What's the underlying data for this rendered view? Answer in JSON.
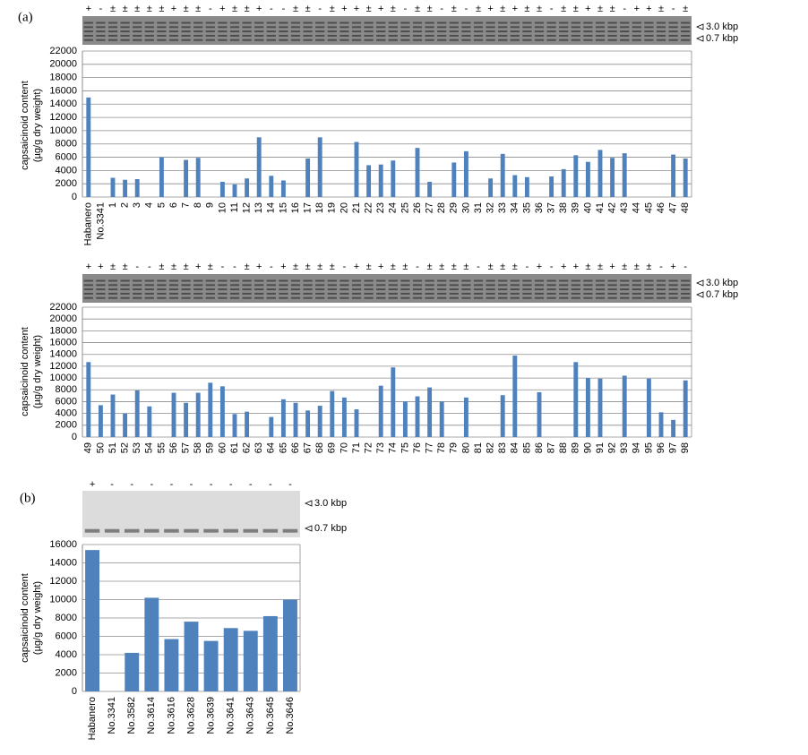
{
  "chart_data": [
    {
      "type": "bar",
      "panel": "(a)",
      "ylabel": [
        "capsaicinoid content",
        "(µg/g dry weight)"
      ],
      "color": "#4f81bd",
      "gel_markers": [
        "3.0 kbp",
        "0.7 kbp"
      ],
      "genotypes": [
        "+",
        "-",
        "±",
        "±",
        "±",
        "±",
        "±",
        "+",
        "±",
        "±",
        "-",
        "+",
        "±",
        "±",
        "+",
        "-",
        "-",
        "±",
        "±",
        "-",
        "±",
        "+",
        "+",
        "±",
        "+",
        "±",
        "-",
        "±",
        "±",
        "-",
        "±",
        "-",
        "±",
        "+",
        "±",
        "+",
        "±",
        "±",
        "-",
        "±",
        "±",
        "+",
        "±",
        "±",
        "-",
        "+",
        "+",
        "±",
        "-",
        "±"
      ],
      "categories": [
        "Habanero",
        "No.3341",
        "1",
        "2",
        "3",
        "4",
        "5",
        "6",
        "7",
        "8",
        "9",
        "10",
        "11",
        "12",
        "13",
        "14",
        "15",
        "16",
        "17",
        "18",
        "19",
        "20",
        "21",
        "22",
        "23",
        "24",
        "25",
        "26",
        "27",
        "28",
        "29",
        "30",
        "31",
        "32",
        "33",
        "34",
        "35",
        "36",
        "37",
        "38",
        "39",
        "40",
        "41",
        "42",
        "43",
        "44",
        "45",
        "46",
        "47",
        "48"
      ],
      "values": [
        15000,
        0,
        2900,
        2600,
        2700,
        0,
        6000,
        0,
        5600,
        5900,
        0,
        2300,
        1900,
        2800,
        9000,
        3200,
        2500,
        0,
        5800,
        9000,
        0,
        0,
        8300,
        4800,
        4900,
        5500,
        0,
        7400,
        2300,
        0,
        5200,
        6900,
        0,
        2800,
        6500,
        3300,
        3000,
        0,
        3100,
        4200,
        6300,
        5300,
        7100,
        5900,
        6600,
        0,
        0,
        0,
        6400,
        5800
      ],
      "ylim": [
        0,
        22000
      ],
      "yticks": [
        0,
        2000,
        4000,
        6000,
        8000,
        10000,
        12000,
        14000,
        16000,
        18000,
        20000,
        22000
      ],
      "grid": true
    },
    {
      "type": "bar",
      "ylabel": [
        "capsaicinoid content",
        "(µg/g dry weight)"
      ],
      "color": "#4f81bd",
      "gel_markers": [
        "3.0 kbp",
        "0.7 kbp"
      ],
      "genotypes": [
        "+",
        "+",
        "±",
        "±",
        "-",
        "-",
        "±",
        "±",
        "±",
        "+",
        "±",
        "-",
        "-",
        "±",
        "+",
        "-",
        "+",
        "±",
        "±",
        "±",
        "±",
        "-",
        "+",
        "±",
        "+",
        "±",
        "±",
        "-",
        "±",
        "±",
        "±",
        "±",
        "-",
        "±",
        "±",
        "±",
        "-",
        "+",
        "-",
        "+",
        "+",
        "±",
        "±",
        "+",
        "±",
        "±",
        "±",
        "-",
        "+",
        "-"
      ],
      "categories": [
        "49",
        "50",
        "51",
        "52",
        "53",
        "54",
        "55",
        "56",
        "57",
        "58",
        "59",
        "60",
        "61",
        "62",
        "63",
        "64",
        "65",
        "66",
        "67",
        "68",
        "69",
        "70",
        "71",
        "72",
        "73",
        "74",
        "75",
        "76",
        "77",
        "78",
        "79",
        "80",
        "81",
        "82",
        "83",
        "84",
        "85",
        "86",
        "87",
        "88",
        "89",
        "90",
        "91",
        "92",
        "93",
        "94",
        "95",
        "96",
        "97",
        "98"
      ],
      "values": [
        12700,
        5400,
        7200,
        4000,
        7900,
        5200,
        0,
        7500,
        5800,
        7500,
        9200,
        8600,
        3900,
        4300,
        0,
        3400,
        6400,
        5800,
        4500,
        5300,
        7800,
        6700,
        4700,
        0,
        8700,
        11800,
        6000,
        6900,
        8400,
        6000,
        0,
        6700,
        0,
        0,
        7100,
        13800,
        0,
        7600,
        0,
        0,
        12700,
        10000,
        9900,
        0,
        10400,
        0,
        9900,
        4200,
        2900,
        9600
      ],
      "ylim": [
        0,
        22000
      ],
      "yticks": [
        0,
        2000,
        4000,
        6000,
        8000,
        10000,
        12000,
        14000,
        16000,
        18000,
        20000,
        22000
      ],
      "grid": true
    },
    {
      "type": "bar",
      "panel": "(b)",
      "ylabel": [
        "capsaicinoid content",
        "(µg/g dry weight)"
      ],
      "color": "#4f81bd",
      "gel_markers": [
        "3.0 kbp",
        "0.7 kbp"
      ],
      "genotypes": [
        "+",
        "-",
        "-",
        "-",
        "-",
        "-",
        "-",
        "-",
        "-",
        "-",
        "-"
      ],
      "categories": [
        "Habanero",
        "No.3341",
        "No.3582",
        "No.3614",
        "No.3616",
        "No.3628",
        "No.3639",
        "No.3641",
        "No.3643",
        "No.3645",
        "No.3646"
      ],
      "values": [
        15400,
        0,
        4200,
        10200,
        5700,
        7600,
        5500,
        6900,
        6600,
        8200,
        10000
      ],
      "ylim": [
        0,
        16000
      ],
      "yticks": [
        0,
        2000,
        4000,
        6000,
        8000,
        10000,
        12000,
        14000,
        16000
      ],
      "grid": true
    }
  ]
}
